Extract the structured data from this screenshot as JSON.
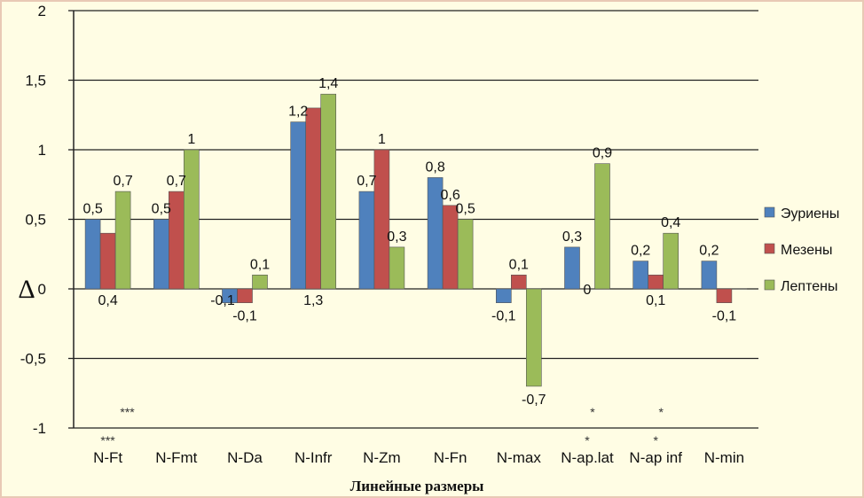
{
  "chart_data": {
    "type": "bar",
    "title": "",
    "xlabel": "Линейные размеры",
    "ylabel": "Δ",
    "ylim": [
      -1,
      2
    ],
    "yticks": [
      2,
      1.5,
      1,
      0.5,
      0,
      -0.5,
      -1
    ],
    "ytick_labels": [
      "2",
      "1,5",
      "1",
      "0,5",
      "0",
      "-0,5",
      "-1"
    ],
    "grid": true,
    "legend_position": "right",
    "categories": [
      "N-Ft",
      "N-Fmt",
      "N-Da",
      "N-Infr",
      "N-Zm",
      "N-Fn",
      "N-max",
      "N-ap.lat",
      "N-ap inf",
      "N-min"
    ],
    "series": [
      {
        "name": "Эуриены",
        "color": "#4f81bd",
        "values": [
          0.5,
          0.5,
          -0.1,
          1.2,
          0.7,
          0.8,
          -0.1,
          0.3,
          0.2,
          0.2
        ],
        "labels": [
          "0,5",
          "0,5",
          "-0,1",
          "1,2",
          "0,7",
          "0,8",
          "-0,1",
          "0,3",
          "0,2",
          "0,2"
        ]
      },
      {
        "name": "Мезены",
        "color": "#c0504d",
        "values": [
          0.4,
          0.7,
          -0.1,
          1.3,
          1,
          0.6,
          0.1,
          0,
          0.1,
          -0.1
        ],
        "labels": [
          "0,4",
          "0,7",
          "-0,1",
          "1,3",
          "1",
          "0,6",
          "0,1",
          "0",
          "0,1",
          "-0,1"
        ]
      },
      {
        "name": "Лептены",
        "color": "#9bbb59",
        "values": [
          0.7,
          1,
          0.1,
          1.4,
          0.3,
          0.5,
          -0.7,
          0.9,
          0.4,
          0
        ],
        "labels": [
          "0,7",
          "1",
          "0,1",
          "1,4",
          "0,3",
          "0,5",
          "-0,7",
          "0,9",
          "0,4",
          ""
        ]
      }
    ],
    "annotations": [
      {
        "category": "N-Ft",
        "text": "***",
        "where": "below-axis"
      },
      {
        "category": "N-Ft",
        "text": "***",
        "where": "plot"
      },
      {
        "category": "N-ap.lat",
        "text": "*",
        "where": "below-axis"
      },
      {
        "category": "N-ap.lat",
        "text": "*",
        "where": "plot"
      },
      {
        "category": "N-ap inf",
        "text": "*",
        "where": "below-axis"
      },
      {
        "category": "N-ap inf",
        "text": "*",
        "where": "plot"
      }
    ]
  }
}
